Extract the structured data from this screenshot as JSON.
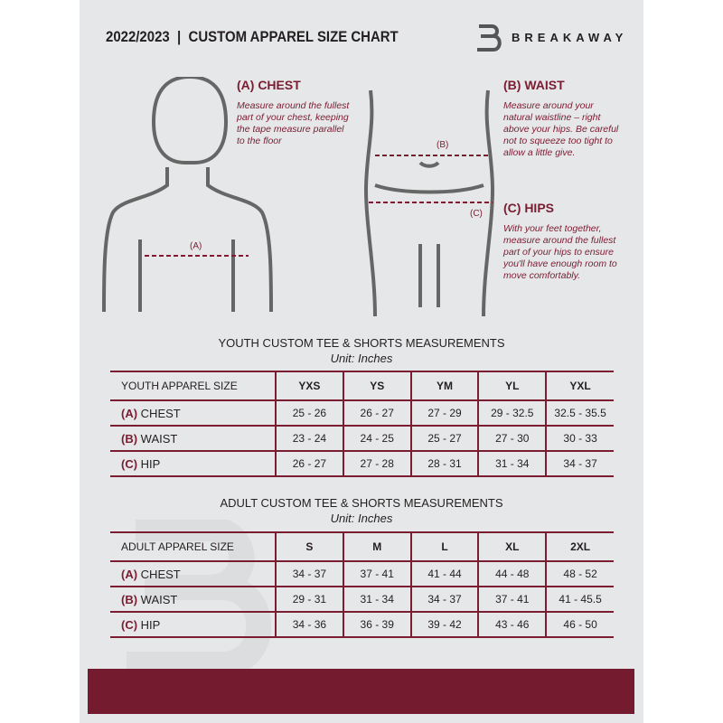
{
  "header": {
    "title": "2022/2023  |  CUSTOM APPAREL SIZE CHART",
    "brand": "BREAKAWAY"
  },
  "colors": {
    "accent": "#7a1c32",
    "background": "#e6e7e8"
  },
  "measures": {
    "chest": {
      "title": "(A) CHEST",
      "marker": "(A)",
      "text": "Measure around the fullest part of your chest, keeping the tape measure parallel to the floor"
    },
    "waist": {
      "title": "(B) WAIST",
      "marker": "(B)",
      "text": "Measure around your natural waistline – right above your hips. Be careful not to squeeze too tight to allow a little give."
    },
    "hips": {
      "title": "(C) HIPS",
      "marker": "(C)",
      "text": "With your feet together, measure around the fullest part of your hips to ensure you'll have enough room to move comfortably."
    }
  },
  "youth": {
    "title": "YOUTH CUSTOM TEE & SHORTS MEASUREMENTS",
    "unit": "Unit: Inches",
    "header": [
      "YOUTH APPAREL SIZE",
      "YXS",
      "YS",
      "YM",
      "YL",
      "YXL"
    ],
    "rows": [
      {
        "letter": "(A)",
        "label": "CHEST",
        "values": [
          "25 - 26",
          "26 - 27",
          "27 - 29",
          "29 - 32.5",
          "32.5 - 35.5"
        ]
      },
      {
        "letter": "(B)",
        "label": "WAIST",
        "values": [
          "23 - 24",
          "24 - 25",
          "25 - 27",
          "27 - 30",
          "30 - 33"
        ]
      },
      {
        "letter": "(C)",
        "label": "HIP",
        "values": [
          "26 - 27",
          "27 - 28",
          "28 - 31",
          "31 - 34",
          "34 - 37"
        ]
      }
    ]
  },
  "adult": {
    "title": "ADULT CUSTOM TEE & SHORTS MEASUREMENTS",
    "unit": "Unit: Inches",
    "header": [
      "ADULT APPAREL SIZE",
      "S",
      "M",
      "L",
      "XL",
      "2XL"
    ],
    "rows": [
      {
        "letter": "(A)",
        "label": "CHEST",
        "values": [
          "34 - 37",
          "37 - 41",
          "41 - 44",
          "44 - 48",
          "48 - 52"
        ]
      },
      {
        "letter": "(B)",
        "label": "WAIST",
        "values": [
          "29 - 31",
          "31 - 34",
          "34 - 37",
          "37 - 41",
          "41 - 45.5"
        ]
      },
      {
        "letter": "(C)",
        "label": "HIP",
        "values": [
          "34 - 36",
          "36 - 39",
          "39 - 42",
          "43 - 46",
          "46 - 50"
        ]
      }
    ]
  }
}
